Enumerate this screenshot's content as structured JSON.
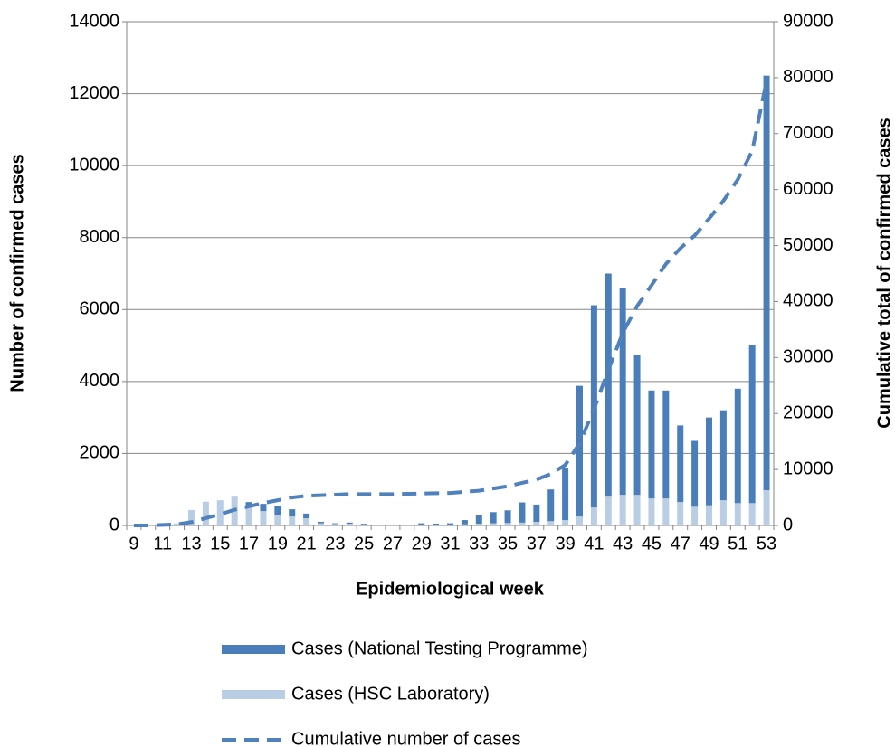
{
  "chart_data": {
    "type": "bar",
    "x_label": "Epidemiological week",
    "y_label": "Number of confirmed cases",
    "y2_label": "Cumulative total of confirmed cases",
    "categories": [
      9,
      null,
      11,
      null,
      13,
      null,
      15,
      null,
      17,
      null,
      19,
      null,
      21,
      null,
      23,
      null,
      25,
      null,
      27,
      null,
      29,
      null,
      31,
      null,
      33,
      null,
      35,
      null,
      37,
      null,
      39,
      null,
      41,
      null,
      43,
      null,
      45,
      null,
      47,
      null,
      49,
      null,
      51,
      null,
      53
    ],
    "series": [
      {
        "name": "Cases (National Testing Programme)",
        "color": "#4a7ebb",
        "type": "bar",
        "values": [
          0,
          0,
          0,
          0,
          0,
          0,
          0,
          0,
          150,
          200,
          250,
          200,
          130,
          40,
          20,
          30,
          20,
          10,
          5,
          5,
          40,
          30,
          40,
          120,
          230,
          310,
          350,
          560,
          480,
          880,
          1450,
          3630,
          5620,
          6200,
          5750,
          3900,
          3000,
          3000,
          2130,
          1830,
          2440,
          2500,
          3180,
          4400,
          11520
        ]
      },
      {
        "name": "Cases (HSC Laboratory)",
        "color": "#b9cde5",
        "type": "bar",
        "values": [
          0,
          5,
          10,
          60,
          430,
          660,
          700,
          800,
          500,
          400,
          300,
          250,
          200,
          60,
          40,
          50,
          30,
          10,
          5,
          5,
          20,
          20,
          20,
          30,
          50,
          60,
          70,
          80,
          100,
          120,
          150,
          250,
          500,
          800,
          850,
          850,
          750,
          750,
          650,
          520,
          560,
          700,
          620,
          620,
          980
        ]
      },
      {
        "name": "Cumulative number of cases",
        "color": "#4f81bd",
        "type": "line",
        "axis": "y2",
        "dashed": true,
        "values": [
          0,
          0,
          100,
          200,
          600,
          1300,
          2000,
          2800,
          3400,
          4000,
          4500,
          5000,
          5300,
          5400,
          5500,
          5600,
          5600,
          5600,
          5600,
          5650,
          5700,
          5750,
          5800,
          6000,
          6200,
          6600,
          7000,
          7600,
          8200,
          9200,
          10800,
          14700,
          20800,
          27800,
          34400,
          39200,
          42900,
          46700,
          49500,
          51800,
          54800,
          58000,
          61800,
          66900,
          79400
        ]
      }
    ],
    "ylim": [
      0,
      14000
    ],
    "yticks": [
      0,
      2000,
      4000,
      6000,
      8000,
      10000,
      12000,
      14000
    ],
    "y2lim": [
      0,
      90000
    ],
    "y2ticks": [
      0,
      10000,
      20000,
      30000,
      40000,
      50000,
      60000,
      70000,
      80000,
      90000
    ],
    "grid": true,
    "legend": "bottom"
  }
}
